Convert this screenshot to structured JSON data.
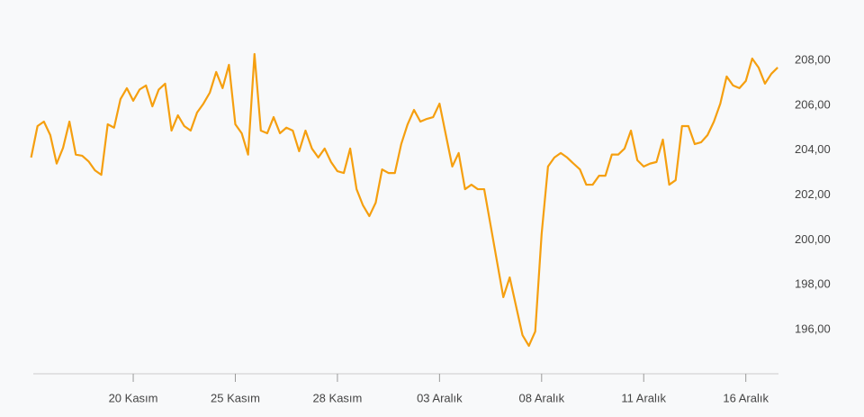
{
  "chart_data": {
    "type": "line",
    "categories": [
      null,
      null,
      null,
      null,
      null,
      null,
      null,
      null,
      null,
      null,
      null,
      null,
      null,
      null,
      null,
      null,
      "20 Kasım",
      null,
      null,
      null,
      null,
      null,
      null,
      null,
      null,
      null,
      null,
      null,
      null,
      null,
      null,
      null,
      "25 Kasım",
      null,
      null,
      null,
      null,
      null,
      null,
      null,
      null,
      null,
      null,
      null,
      null,
      null,
      null,
      null,
      "28 Kasım",
      null,
      null,
      null,
      null,
      null,
      null,
      null,
      null,
      null,
      null,
      null,
      null,
      null,
      null,
      null,
      "03 Aralık",
      null,
      null,
      null,
      null,
      null,
      null,
      null,
      null,
      null,
      null,
      null,
      null,
      null,
      null,
      null,
      "08 Aralık",
      null,
      null,
      null,
      null,
      null,
      null,
      null,
      null,
      null,
      null,
      null,
      null,
      null,
      null,
      null,
      "11 Aralık",
      null,
      null,
      null,
      null,
      null,
      null,
      null,
      null,
      null,
      null,
      null,
      null,
      null,
      null,
      null,
      "16 Aralık",
      null,
      null,
      null,
      null,
      null
    ],
    "series": [
      {
        "color": "#f59f0f",
        "values": [
          203.67,
          205.07,
          205.27,
          204.67,
          203.4,
          204.1,
          205.27,
          203.8,
          203.75,
          203.5,
          203.1,
          202.9,
          205.15,
          205.0,
          206.27,
          206.76,
          206.2,
          206.7,
          206.88,
          205.95,
          206.7,
          206.96,
          204.87,
          205.55,
          205.07,
          204.87,
          205.67,
          206.07,
          206.56,
          207.48,
          206.76,
          207.8,
          205.15,
          204.75,
          203.8,
          208.28,
          204.87,
          204.75,
          205.47,
          204.75,
          205.0,
          204.87,
          203.95,
          204.87,
          204.07,
          203.67,
          204.07,
          203.47,
          203.06,
          202.98,
          204.07,
          202.26,
          201.54,
          201.06,
          201.66,
          203.14,
          202.98,
          202.98,
          204.27,
          205.15,
          205.79,
          205.27,
          205.39,
          205.47,
          206.07,
          204.67,
          203.27,
          203.87,
          202.26,
          202.46,
          202.26,
          202.26,
          200.66,
          199.05,
          197.45,
          198.33,
          197.04,
          195.76,
          195.28,
          195.92,
          200.26,
          203.27,
          203.67,
          203.87,
          203.67,
          203.4,
          203.14,
          202.46,
          202.46,
          202.86,
          202.86,
          203.8,
          203.8,
          204.07,
          204.87,
          203.55,
          203.27,
          203.4,
          203.47,
          204.47,
          202.46,
          202.66,
          205.07,
          205.07,
          204.27,
          204.35,
          204.67,
          205.27,
          206.07,
          207.28,
          206.88,
          206.76,
          207.08,
          208.08,
          207.68,
          206.96,
          207.4,
          207.68
        ]
      }
    ],
    "ylim": [
      194,
      209.5
    ],
    "yticks": [
      {
        "value": 196,
        "label": "196,00"
      },
      {
        "value": 198,
        "label": "198,00"
      },
      {
        "value": 200,
        "label": "200,00"
      },
      {
        "value": 202,
        "label": "202,00"
      },
      {
        "value": 204,
        "label": "204,00"
      },
      {
        "value": 206,
        "label": "206,00"
      },
      {
        "value": 208,
        "label": "208,00"
      }
    ],
    "grid": false
  }
}
